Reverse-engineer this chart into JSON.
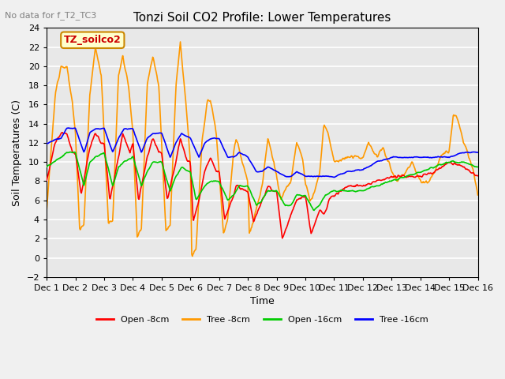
{
  "title": "Tonzi Soil CO2 Profile: Lower Temperatures",
  "subtitle": "No data for f_T2_TC3",
  "ylabel": "Soil Temperatures (C)",
  "xlabel": "Time",
  "ylim": [
    -2,
    24
  ],
  "yticks": [
    -2,
    0,
    2,
    4,
    6,
    8,
    10,
    12,
    14,
    16,
    18,
    20,
    22,
    24
  ],
  "xtick_labels": [
    "Dec 1",
    "Dec 2",
    "Dec 3",
    "Dec 4",
    "Dec 5",
    "Dec 6",
    "Dec 7",
    "Dec 8",
    "Dec 9",
    "Dec 10",
    "Dec 11",
    "Dec 12",
    "Dec 13",
    "Dec 14",
    "Dec 15",
    "Dec 16"
  ],
  "legend_labels": [
    "Open -8cm",
    "Tree -8cm",
    "Open -16cm",
    "Tree -16cm"
  ],
  "legend_colors": [
    "#ff0000",
    "#ff9900",
    "#00cc00",
    "#0000ff"
  ],
  "line_colors": [
    "#ff0000",
    "#ff9900",
    "#00cc00",
    "#0000ff"
  ],
  "bg_color": "#e8e8e8",
  "plot_bg_color": "#e8e8e8",
  "annotation_text": "TZ_soilco2",
  "annotation_bg": "#ffffcc",
  "annotation_border": "#cc8800"
}
